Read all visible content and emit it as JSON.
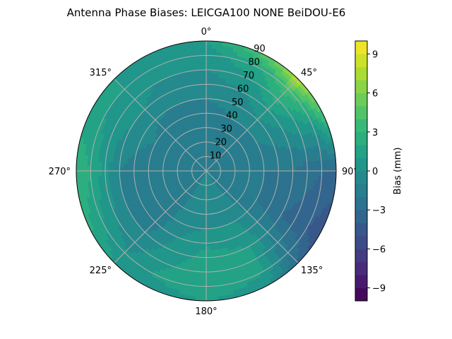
{
  "chart_data": {
    "type": "heatmap",
    "projection": "polar",
    "title": "Antenna Phase Biases: LEICGA100        NONE BeiDOU-E6",
    "angle_ticks": [
      "0°",
      "45°",
      "90°",
      "135°",
      "180°",
      "225°",
      "270°",
      "315°"
    ],
    "radial_ticks": [
      "10",
      "20",
      "30",
      "40",
      "50",
      "60",
      "70",
      "80",
      "90"
    ],
    "radial_range": [
      0,
      90
    ],
    "grid": true,
    "colorbar": {
      "label": "Bias (mm)",
      "range": [
        -10,
        10
      ],
      "ticks": [
        "−9",
        "−6",
        "−3",
        "0",
        "3",
        "6",
        "9"
      ],
      "tick_values": [
        -9,
        -6,
        -3,
        0,
        3,
        6,
        9
      ],
      "levels": 20,
      "colormap": "viridis"
    },
    "field_samples": {
      "azimuth_deg": [
        0,
        30,
        45,
        60,
        90,
        120,
        135,
        150,
        180,
        210,
        225,
        240,
        270,
        300,
        315,
        330
      ],
      "zenith_deg": [
        0,
        20,
        40,
        60,
        80,
        90
      ],
      "bias_mm": [
        [
          -2,
          -2,
          -1.5,
          -0.5,
          0.5,
          1
        ],
        [
          -2,
          -2,
          -1,
          0,
          2,
          5
        ],
        [
          -2,
          -1.5,
          -1,
          1,
          4,
          8
        ],
        [
          -2,
          -1.5,
          -1,
          0,
          2,
          5
        ],
        [
          -2,
          -2,
          -2,
          -2,
          -3,
          -3
        ],
        [
          -2,
          -2,
          -2,
          -3,
          -4,
          -5
        ],
        [
          -2,
          -1.5,
          -1,
          -1,
          -2,
          -3
        ],
        [
          -1,
          -0.5,
          0,
          1,
          1,
          0
        ],
        [
          -1,
          -0.5,
          0,
          1.5,
          2,
          1
        ],
        [
          -1,
          -1,
          -0.5,
          0,
          1,
          0
        ],
        [
          -2,
          -2,
          -2,
          -1,
          0,
          1
        ],
        [
          -2,
          -2,
          -2,
          -1,
          1,
          2
        ],
        [
          -2,
          -2,
          -2,
          -1,
          2,
          3
        ],
        [
          -2,
          -2,
          -1,
          0,
          1,
          1
        ],
        [
          -2,
          -2,
          -1.5,
          0,
          1,
          1
        ],
        [
          -2,
          -2,
          -1.5,
          -0.5,
          0.5,
          0.5
        ]
      ]
    }
  }
}
